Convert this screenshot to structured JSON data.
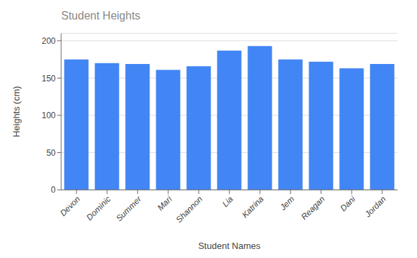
{
  "chart_data": {
    "type": "bar",
    "title": "Student Heights",
    "xlabel": "Student Names",
    "ylabel": "Heights (cm)",
    "categories": [
      "Devon",
      "Dominic",
      "Summer",
      "Mari",
      "Shannon",
      "Lia",
      "Katrina",
      "Jem",
      "Reagan",
      "Dani",
      "Jordan"
    ],
    "values": [
      175,
      170,
      169,
      161,
      166,
      187,
      193,
      175,
      172,
      163,
      169
    ],
    "color": "#4285f4",
    "ylim": [
      0,
      210
    ],
    "yticks": [
      0,
      50,
      100,
      150,
      200
    ],
    "grid": true
  }
}
